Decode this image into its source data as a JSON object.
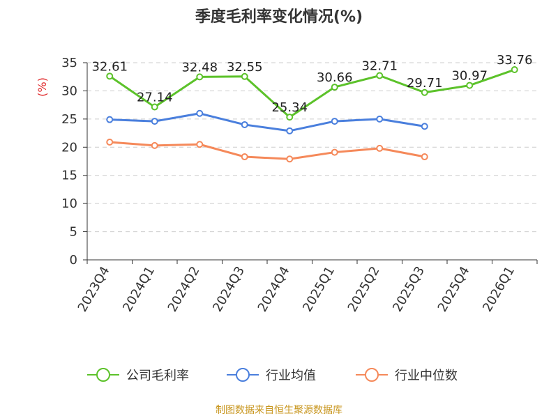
{
  "title": "季度毛利率变化情况(%)",
  "source": "制图数据来自恒生聚源数据库",
  "chart_data": {
    "type": "line",
    "title": "季度毛利率变化情况(%)",
    "ylabel": "(%)",
    "ylim": [
      0,
      35
    ],
    "yticks": [
      0,
      5,
      10,
      15,
      20,
      25,
      30,
      35
    ],
    "grid": true,
    "legend_position": "bottom",
    "categories": [
      "2023Q4",
      "2024Q1",
      "2024Q2",
      "2024Q3",
      "2024Q4",
      "2025Q1",
      "2025Q2",
      "2025Q3",
      "2025Q4",
      "2026Q1"
    ],
    "series": [
      {
        "name": "公司毛利率",
        "color": "#5cc22a",
        "show_labels": true,
        "values": [
          32.61,
          27.14,
          32.48,
          32.55,
          25.34,
          30.66,
          32.71,
          29.71,
          30.97,
          33.76
        ]
      },
      {
        "name": "行业均值",
        "color": "#4a7fdd",
        "show_labels": false,
        "values": [
          24.9,
          24.6,
          26.0,
          24.0,
          22.9,
          24.6,
          25.0,
          23.7,
          null,
          null
        ]
      },
      {
        "name": "行业中位数",
        "color": "#f5895a",
        "show_labels": false,
        "values": [
          20.9,
          20.3,
          20.5,
          18.3,
          17.9,
          19.1,
          19.8,
          18.3,
          null,
          null
        ]
      }
    ]
  }
}
